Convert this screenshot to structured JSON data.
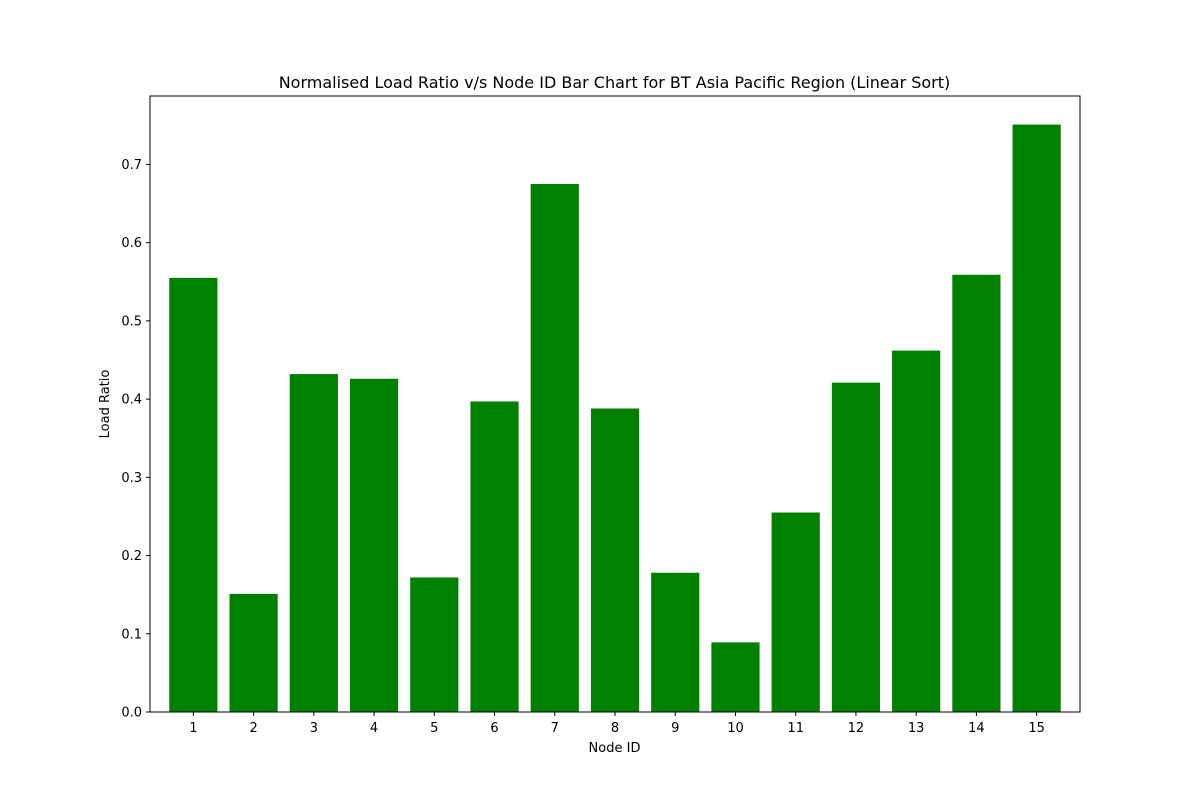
{
  "chart_data": {
    "type": "bar",
    "title": "Normalised Load Ratio v/s Node ID Bar Chart for BT Asia Pacific Region (Linear Sort)",
    "xlabel": "Node ID",
    "ylabel": "Load Ratio",
    "categories": [
      "1",
      "2",
      "3",
      "4",
      "5",
      "6",
      "7",
      "8",
      "9",
      "10",
      "11",
      "12",
      "13",
      "14",
      "15"
    ],
    "values": [
      0.555,
      0.151,
      0.432,
      0.426,
      0.172,
      0.397,
      0.675,
      0.388,
      0.178,
      0.089,
      0.255,
      0.421,
      0.462,
      0.559,
      0.751
    ],
    "ylim": [
      0,
      0.7875
    ],
    "yticks": [
      "0.0",
      "0.1",
      "0.2",
      "0.3",
      "0.4",
      "0.5",
      "0.6",
      "0.7"
    ],
    "bar_color": "#008000",
    "grid": false,
    "legend": "none"
  }
}
